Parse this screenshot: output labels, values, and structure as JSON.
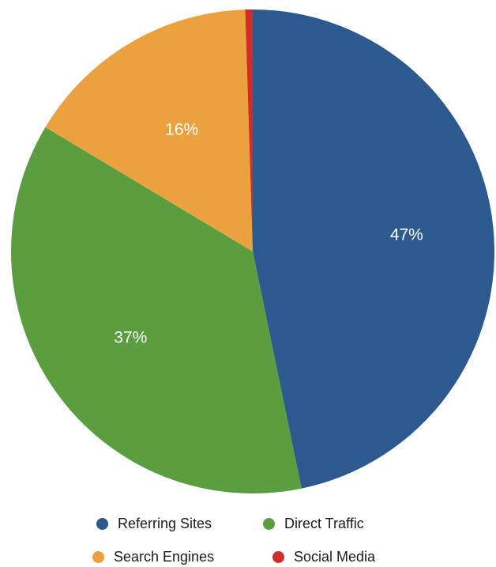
{
  "chart_data": {
    "type": "pie",
    "title": "",
    "slices": [
      {
        "name": "Referring Sites",
        "value": 47,
        "label": "47%",
        "color": "#2c5a8e"
      },
      {
        "name": "Direct Traffic",
        "value": 37,
        "label": "37%",
        "color": "#5a9e40"
      },
      {
        "name": "Search Engines",
        "value": 16,
        "label": "16%",
        "color": "#eba23e"
      },
      {
        "name": "Social Media",
        "value": 0.5,
        "label": "",
        "color": "#d42a2a"
      }
    ],
    "legend": {
      "placement": "bottom",
      "items": [
        "Referring Sites",
        "Direct Traffic",
        "Search Engines",
        "Social Media"
      ]
    }
  }
}
